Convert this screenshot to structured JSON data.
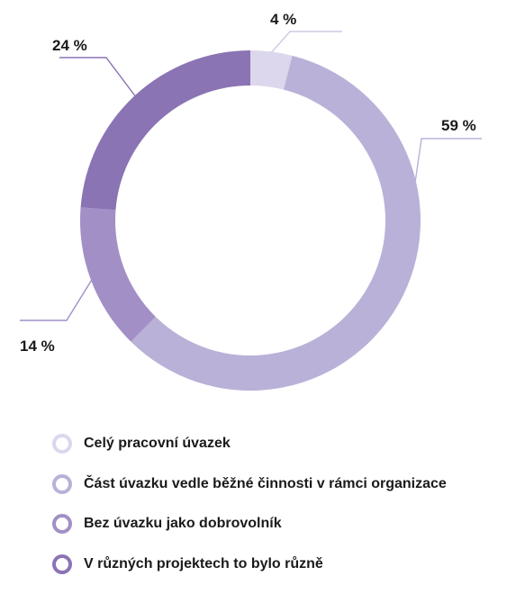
{
  "chart_data": {
    "type": "pie",
    "donut": true,
    "title": "",
    "categories": [
      "Celý pracovní úvazek",
      "Část úvazku vedle běžné činnosti v rámci organizace",
      "Bez úvazku jako dobrovolník",
      "V různých projektech to bylo různě"
    ],
    "values": [
      4,
      59,
      14,
      24
    ],
    "value_labels": [
      "4 %",
      "59 %",
      "14 %",
      "24 %"
    ],
    "colors": [
      "#dcd7ec",
      "#b9b1d8",
      "#a18fc6",
      "#8a74b4"
    ],
    "legend_position": "bottom-left"
  }
}
